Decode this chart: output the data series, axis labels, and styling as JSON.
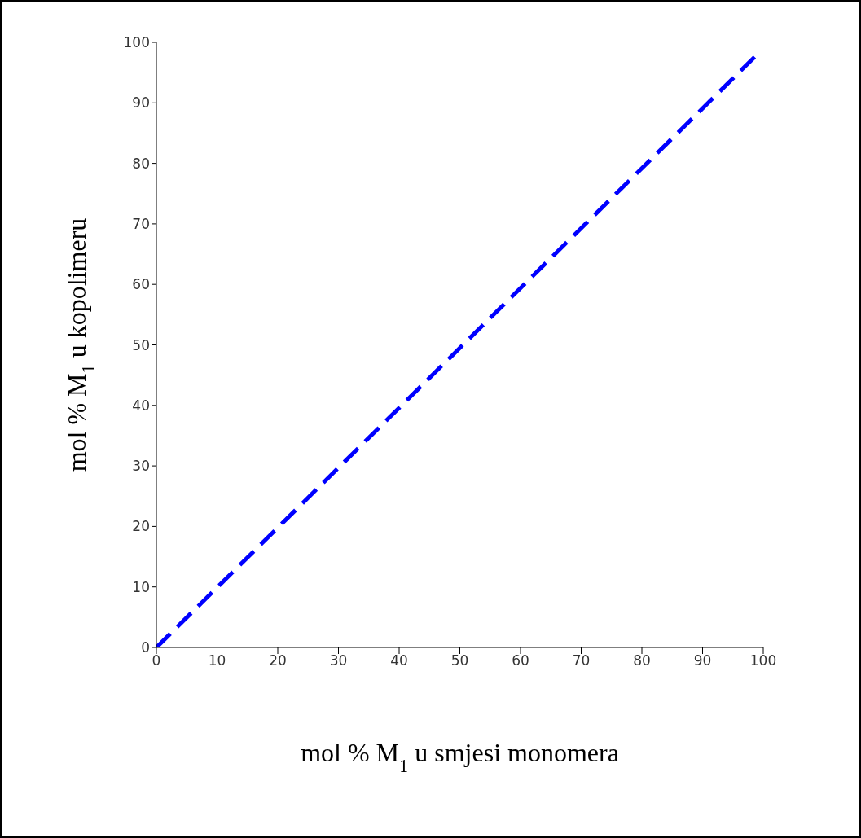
{
  "chart_data": {
    "type": "line",
    "xlabel": "mol  %  M$_{1}$  u smjesi monomera",
    "ylabel": "mol  %  M$_{1}$  u kopolimeru",
    "x": [
      0,
      99
    ],
    "series": [
      {
        "color": "#0000ff",
        "values": [
          0,
          98
        ]
      }
    ],
    "xlim": [
      0,
      100
    ],
    "xticks": [
      0,
      10,
      20,
      30,
      40,
      50,
      60,
      70,
      80,
      90,
      100
    ],
    "ylim": [
      0,
      100
    ],
    "yticks": [
      0,
      10,
      20,
      30,
      40,
      50,
      60,
      70,
      80,
      90,
      100
    ],
    "grid": false,
    "legend": false,
    "marker": "none",
    "line_style": "dashed"
  }
}
